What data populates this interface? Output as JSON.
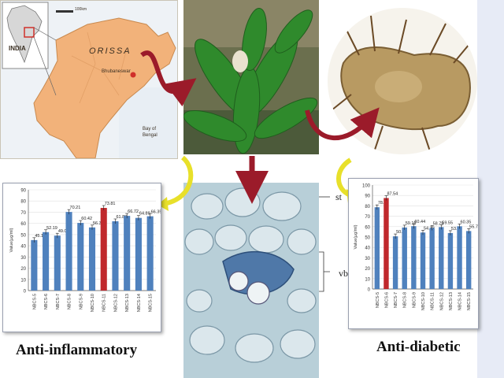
{
  "map": {
    "state_label": "ORISSA",
    "country_label": "INDIA",
    "city_label": "Bhubaneswar",
    "sea_label_1": "Bay of",
    "sea_label_2": "Bengal",
    "scale_label": "100km"
  },
  "micrograph": {
    "label_st": "st",
    "label_vb": "vb"
  },
  "captions": {
    "left": "Anti-inflammatory",
    "right": "Anti-diabetic"
  },
  "colors": {
    "bar": "#4f81bd",
    "highlight": "#c0282c",
    "arrow": "#9b1b2a",
    "yellow_arrow": "#e8e02a",
    "map_land": "#f2b27a"
  },
  "chart_data": [
    {
      "type": "bar",
      "title": "",
      "ylabel": "Value(µg/ml)",
      "xlabel": "",
      "ylim": [
        0,
        90
      ],
      "ytick_step": 10,
      "categories": [
        "NBCS-5",
        "NBCS-6",
        "NBCS-7",
        "NBCS-8",
        "NBCS-9",
        "NBCS-10",
        "NBCS-11",
        "NBCS-12",
        "NBCS-13",
        "NBCS-14",
        "NBCS-15"
      ],
      "values": [
        45.11,
        52.19,
        49.08,
        70.21,
        60.42,
        56.39,
        73.81,
        61.88,
        66.72,
        64.89,
        66.35
      ],
      "data_labels": [
        "45.11",
        "52.19",
        "49.08",
        "70.21",
        "60.42",
        "56.39",
        "73.81",
        "61.88",
        "66.72",
        "64.89",
        "66.35"
      ],
      "highlight_index": 6,
      "grid": true,
      "legend": "none"
    },
    {
      "type": "bar",
      "title": "",
      "ylabel": "Value(µg/ml)",
      "xlabel": "",
      "ylim": [
        0,
        100
      ],
      "ytick_step": 10,
      "categories": [
        "NBCS-5",
        "NBCS-6",
        "NBCS-7",
        "NBCS-8",
        "NBCS-9",
        "NBCS-10",
        "NBCS-11",
        "NBCS-12",
        "NBCS-13",
        "NBCS-14",
        "NBCS-15"
      ],
      "values": [
        78.66,
        87.54,
        50.68,
        59.16,
        60.44,
        54.33,
        58.75,
        59.55,
        53.84,
        60.35,
        55.78
      ],
      "data_labels": [
        "78.66",
        "87.54",
        "50.68",
        "59.16",
        "60.44",
        "54.33",
        "58.75",
        "59.55",
        "53.84",
        "60.35",
        "55.78"
      ],
      "highlight_index": 1,
      "grid": true,
      "legend": "none"
    }
  ]
}
